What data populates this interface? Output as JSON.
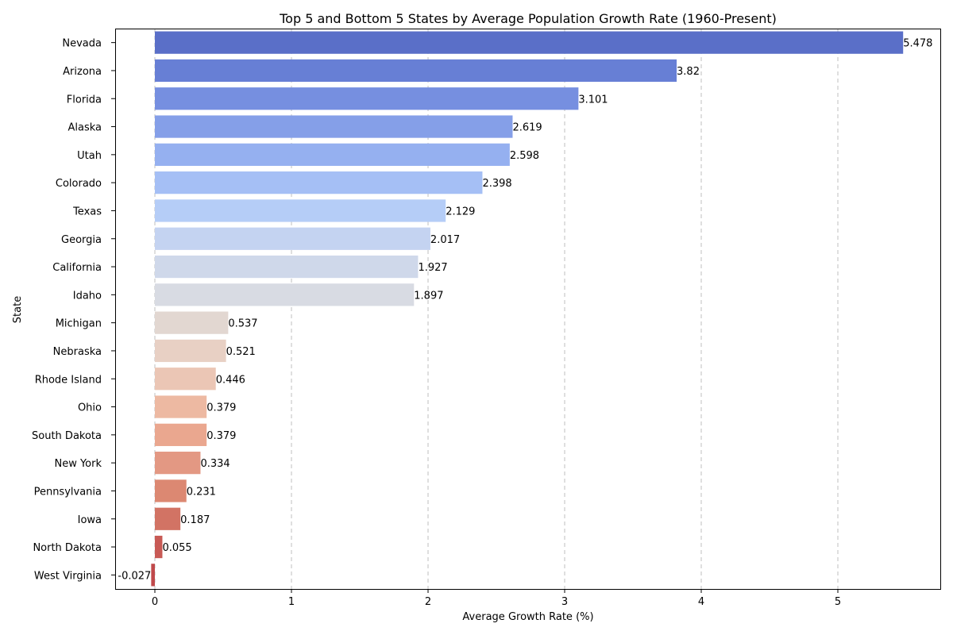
{
  "chart_data": {
    "type": "bar",
    "orientation": "horizontal",
    "title": "Top 5 and Bottom 5 States by Average Population Growth Rate (1960-Present)",
    "xlabel": "Average Growth Rate (%)",
    "ylabel": "State",
    "xlim": [
      -0.3,
      5.75
    ],
    "xticks": [
      0,
      1,
      2,
      3,
      4,
      5
    ],
    "grid": "x-dashed",
    "categories": [
      "Nevada",
      "Arizona",
      "Florida",
      "Alaska",
      "Utah",
      "Colorado",
      "Texas",
      "Georgia",
      "California",
      "Idaho",
      "Michigan",
      "Nebraska",
      "Rhode Island",
      "Ohio",
      "South Dakota",
      "New York",
      "Pennsylvania",
      "Iowa",
      "North Dakota",
      "West Virginia"
    ],
    "values": [
      5.478,
      3.82,
      3.101,
      2.619,
      2.598,
      2.398,
      2.129,
      2.017,
      1.927,
      1.897,
      0.537,
      0.521,
      0.446,
      0.379,
      0.379,
      0.334,
      0.231,
      0.187,
      0.055,
      -0.027
    ],
    "value_labels": [
      "5.478",
      "3.82",
      "3.101",
      "2.619",
      "2.598",
      "2.398",
      "2.129",
      "2.017",
      "1.927",
      "1.897",
      "0.537",
      "0.521",
      "0.446",
      "0.379",
      "0.379",
      "0.334",
      "0.231",
      "0.187",
      "0.055",
      "-0.027"
    ],
    "colors": [
      "#5a6fc8",
      "#677fd5",
      "#768fe0",
      "#859fe8",
      "#95b0f0",
      "#a5bff5",
      "#b5cdf7",
      "#c4d3f1",
      "#cfd8ea",
      "#d8dbe3",
      "#e2d7d1",
      "#e8d0c4",
      "#ebc6b5",
      "#edb9a2",
      "#eaa78f",
      "#e39883",
      "#dc8872",
      "#d27364",
      "#c85a55",
      "#c0494b"
    ]
  }
}
